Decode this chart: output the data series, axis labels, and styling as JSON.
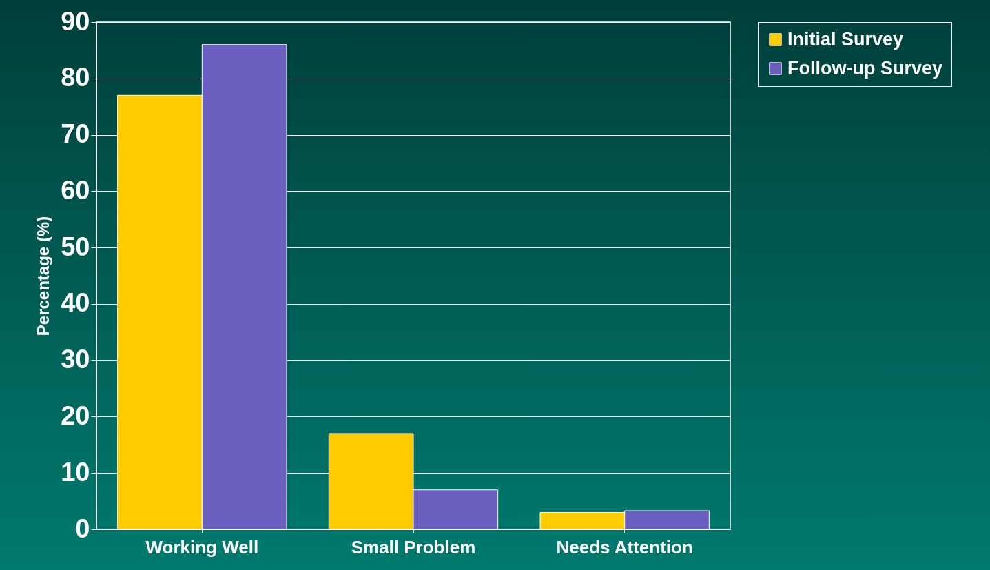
{
  "chart_data": {
    "type": "bar",
    "ylabel": "Percentage (%)",
    "categories": [
      "Working Well",
      "Small Problem",
      "Needs Attention"
    ],
    "series": [
      {
        "name": "Initial Survey",
        "color": "#ffcc00",
        "values": [
          77,
          17,
          3
        ]
      },
      {
        "name": "Follow-up Survey",
        "color": "#6a5fbf",
        "values": [
          86,
          7,
          3.3
        ]
      }
    ],
    "ylim": [
      0,
      90
    ],
    "yticks": [
      0,
      10,
      20,
      30,
      40,
      50,
      60,
      70,
      80,
      90
    ],
    "grid": "y",
    "legend": "right"
  }
}
